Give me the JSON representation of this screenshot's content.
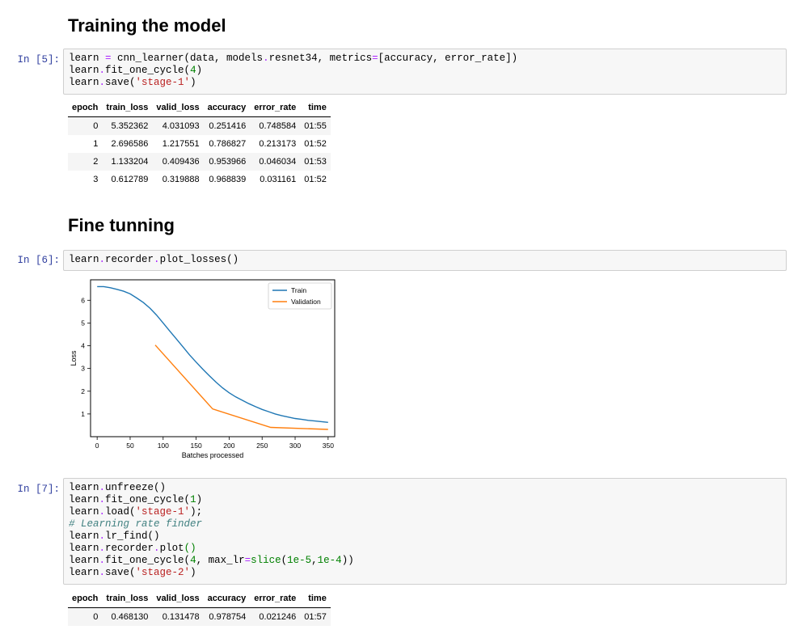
{
  "headings": {
    "training": "Training the model",
    "fine": "Fine tunning"
  },
  "cells": [
    {
      "prompt": "In [5]:"
    },
    {
      "prompt": "In [6]:"
    },
    {
      "prompt": "In [7]:"
    }
  ],
  "table1": {
    "headers": [
      "epoch",
      "train_loss",
      "valid_loss",
      "accuracy",
      "error_rate",
      "time"
    ],
    "rows": [
      [
        "0",
        "5.352362",
        "4.031093",
        "0.251416",
        "0.748584",
        "01:55"
      ],
      [
        "1",
        "2.696586",
        "1.217551",
        "0.786827",
        "0.213173",
        "01:52"
      ],
      [
        "2",
        "1.133204",
        "0.409436",
        "0.953966",
        "0.046034",
        "01:53"
      ],
      [
        "3",
        "0.612789",
        "0.319888",
        "0.968839",
        "0.031161",
        "01:52"
      ]
    ]
  },
  "table2": {
    "headers": [
      "epoch",
      "train_loss",
      "valid_loss",
      "accuracy",
      "error_rate",
      "time"
    ],
    "rows": [
      [
        "0",
        "0.468130",
        "0.131478",
        "0.978754",
        "0.021246",
        "01:57"
      ]
    ]
  },
  "chart_data": {
    "type": "line",
    "xlabel": "Batches processed",
    "ylabel": "Loss",
    "xlim": [
      -10,
      360
    ],
    "ylim": [
      0.0,
      6.9
    ],
    "xticks": [
      0,
      50,
      100,
      150,
      200,
      250,
      300,
      350
    ],
    "yticks": [
      1,
      2,
      3,
      4,
      5,
      6
    ],
    "legend_position": "top-right",
    "series": [
      {
        "name": "Train",
        "color": "#1f77b4",
        "x": [
          0,
          10,
          20,
          30,
          40,
          50,
          60,
          70,
          80,
          90,
          100,
          110,
          120,
          130,
          140,
          150,
          160,
          170,
          180,
          190,
          200,
          210,
          220,
          230,
          240,
          250,
          260,
          270,
          280,
          290,
          300,
          310,
          320,
          330,
          340,
          350
        ],
        "y": [
          6.6,
          6.6,
          6.55,
          6.48,
          6.4,
          6.28,
          6.1,
          5.9,
          5.65,
          5.35,
          5.0,
          4.65,
          4.3,
          3.95,
          3.6,
          3.28,
          2.97,
          2.68,
          2.4,
          2.15,
          1.93,
          1.75,
          1.6,
          1.45,
          1.32,
          1.2,
          1.1,
          1.0,
          0.92,
          0.86,
          0.8,
          0.76,
          0.72,
          0.69,
          0.66,
          0.63
        ]
      },
      {
        "name": "Validation",
        "color": "#ff7f0e",
        "x": [
          88,
          175,
          263,
          350
        ],
        "y": [
          4.03,
          1.22,
          0.41,
          0.32
        ]
      }
    ]
  }
}
